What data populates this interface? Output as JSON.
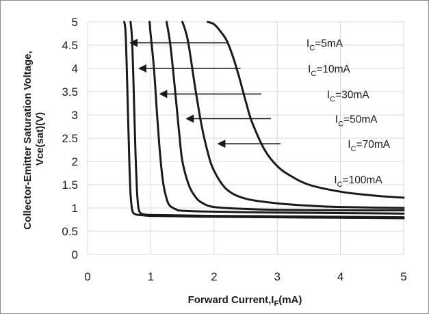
{
  "chart_data": {
    "type": "line",
    "title": "",
    "xlabel": "Forward Current,I",
    "xlabel_sub": "F",
    "xlabel_suffix": "(mA)",
    "ylabel_line1": "Collector-Emitter Saturation Voltage,",
    "ylabel_line2": "Vce(sat)(V)",
    "xlim": [
      0,
      5
    ],
    "ylim": [
      0,
      5
    ],
    "grid": true,
    "xticks": [
      "0",
      "1",
      "2",
      "3",
      "4",
      "5"
    ],
    "yticks": [
      "0",
      "0.5",
      "1",
      "1.5",
      "2",
      "2.5",
      "3",
      "3.5",
      "4",
      "4.5",
      "5"
    ],
    "series": [
      {
        "label": "I",
        "label_sub": "C",
        "label_suffix": "=5mA",
        "x": [
          0.58,
          0.6,
          0.62,
          0.64,
          0.66,
          0.68,
          0.7,
          0.72,
          0.75,
          0.8,
          0.9,
          1.0,
          1.5,
          2.0,
          3.0,
          4.0,
          5.0
        ],
        "y": [
          5.0,
          4.8,
          4.0,
          3.0,
          2.0,
          1.3,
          1.0,
          0.9,
          0.87,
          0.85,
          0.84,
          0.83,
          0.82,
          0.81,
          0.8,
          0.79,
          0.78
        ]
      },
      {
        "label": "I",
        "label_sub": "C",
        "label_suffix": "=10mA",
        "x": [
          0.68,
          0.7,
          0.72,
          0.74,
          0.76,
          0.78,
          0.8,
          0.82,
          0.85,
          0.9,
          1.0,
          1.5,
          2.0,
          3.0,
          4.0,
          5.0
        ],
        "y": [
          5.0,
          4.7,
          4.0,
          3.0,
          2.1,
          1.4,
          1.05,
          0.92,
          0.88,
          0.86,
          0.85,
          0.84,
          0.83,
          0.82,
          0.81,
          0.8
        ]
      },
      {
        "label": "I",
        "label_sub": "C",
        "label_suffix": "=30mA",
        "x": [
          0.98,
          1.0,
          1.05,
          1.1,
          1.15,
          1.2,
          1.25,
          1.3,
          1.4,
          1.5,
          2.0,
          3.0,
          4.0,
          5.0
        ],
        "y": [
          5.0,
          4.7,
          4.0,
          3.0,
          2.1,
          1.5,
          1.2,
          1.05,
          0.97,
          0.94,
          0.92,
          0.9,
          0.89,
          0.88
        ]
      },
      {
        "label": "I",
        "label_sub": "C",
        "label_suffix": "=50mA",
        "x": [
          1.25,
          1.3,
          1.35,
          1.4,
          1.45,
          1.5,
          1.6,
          1.7,
          1.8,
          2.0,
          2.5,
          3.0,
          4.0,
          5.0
        ],
        "y": [
          5.0,
          4.6,
          4.0,
          3.3,
          2.6,
          2.0,
          1.5,
          1.25,
          1.12,
          1.02,
          0.98,
          0.96,
          0.95,
          0.95
        ]
      },
      {
        "label": "I",
        "label_sub": "C",
        "label_suffix": "=70mA",
        "x": [
          1.5,
          1.55,
          1.6,
          1.7,
          1.8,
          1.9,
          2.0,
          2.2,
          2.5,
          3.0,
          3.5,
          4.0,
          5.0
        ],
        "y": [
          5.0,
          4.8,
          4.5,
          3.6,
          2.8,
          2.2,
          1.8,
          1.4,
          1.2,
          1.1,
          1.05,
          1.02,
          1.0
        ]
      },
      {
        "label": "I",
        "label_sub": "C",
        "label_suffix": "=100mA",
        "x": [
          1.9,
          2.0,
          2.1,
          2.2,
          2.3,
          2.4,
          2.5,
          2.6,
          2.8,
          3.0,
          3.2,
          3.5,
          4.0,
          4.5,
          5.0
        ],
        "y": [
          5.0,
          4.95,
          4.8,
          4.6,
          4.25,
          3.8,
          3.3,
          2.85,
          2.25,
          1.9,
          1.7,
          1.5,
          1.35,
          1.27,
          1.22
        ]
      }
    ],
    "annotations": [
      {
        "series": 0,
        "text_x": 3.75,
        "text_y": 4.55,
        "arrow_from_x": 2.2,
        "arrow_to_x": 0.66,
        "arrow_y": 4.55
      },
      {
        "series": 1,
        "text_x": 3.82,
        "text_y": 4.0,
        "arrow_from_x": 2.42,
        "arrow_to_x": 0.8,
        "arrow_y": 4.0
      },
      {
        "series": 2,
        "text_x": 4.12,
        "text_y": 3.45,
        "arrow_from_x": 2.75,
        "arrow_to_x": 1.13,
        "arrow_y": 3.45
      },
      {
        "series": 3,
        "text_x": 4.25,
        "text_y": 2.92,
        "arrow_from_x": 2.9,
        "arrow_to_x": 1.55,
        "arrow_y": 2.92
      },
      {
        "series": 4,
        "text_x": 4.45,
        "text_y": 2.38,
        "arrow_from_x": 3.05,
        "arrow_to_x": 2.05,
        "arrow_y": 2.38
      },
      {
        "series": 5,
        "text_x": 4.28,
        "text_y": 1.62,
        "arrow_from_x": null,
        "arrow_to_x": null,
        "arrow_y": null
      }
    ]
  }
}
